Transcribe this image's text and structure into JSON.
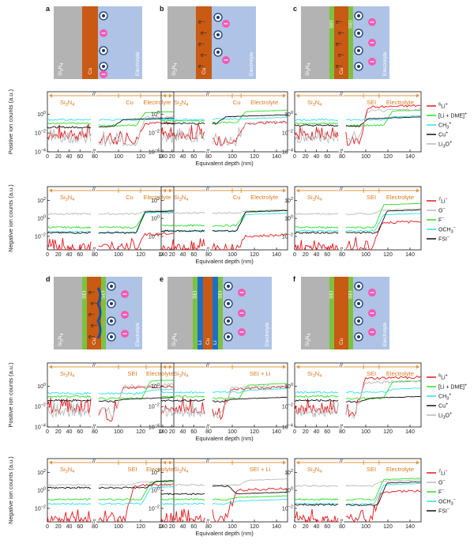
{
  "chart_data": {
    "type": "line",
    "title": "",
    "xlabel": "Equivalent depth (nm)",
    "ylabel_positive": "Positive ion counts (a.u.)",
    "ylabel_negative": "Negative ion counts (a.u.)",
    "xlim": [
      0,
      150
    ],
    "x_break": [
      80,
      80
    ],
    "xticks": [
      "0",
      "20",
      "40",
      "60",
      "80",
      "100",
      "120",
      "140"
    ],
    "pos_yticks": [
      "10^{-4}",
      "10^{-2}",
      "10^{0}"
    ],
    "neg_yticks": [
      "10^{-2}",
      "10^{0}",
      "10^{2}"
    ],
    "region_labels": {
      "a": [
        "Si3N4",
        "Cu",
        "Electrolyte"
      ],
      "b": [
        "Si3N4",
        "Cu",
        "Electrolyte"
      ],
      "c": [
        "Si3N4",
        "SEI",
        "Electrolyte"
      ],
      "d": [
        "Si3N4",
        "SEI",
        "Electrolyte"
      ],
      "e": [
        "Si3N4",
        "SEI + Li"
      ],
      "f": [
        "Si3N4",
        "SEI",
        "Electrolyte"
      ]
    },
    "schematic_labels": {
      "si3n4": "Si3N4",
      "cu": "Cu",
      "electrolyte": "Electrolyte",
      "sei": "SEI",
      "li": "Li",
      "electron": "e−"
    },
    "positive_legend": [
      "6Li+",
      "[Li + DME]+",
      "CH3+",
      "Cu+",
      "Li3O+"
    ],
    "negative_legend": [
      "7Li−",
      "O−",
      "F−",
      "OCH3−",
      "FSI−"
    ],
    "panels": [
      "a",
      "b",
      "c",
      "d",
      "e",
      "f"
    ],
    "series_colors": {
      "pos": [
        "#e8161b",
        "#2ddc2b",
        "#2ee0e8",
        "#111111",
        "#b9b9b9"
      ],
      "neg": [
        "#e8161b",
        "#b9b9b9",
        "#2ddc2b",
        "#2ee0e8",
        "#111111"
      ]
    },
    "series_levels": {
      "a": {
        "pos": [
          [
            -2.3,
            -2.8,
            120,
            -1.0
          ],
          [
            -1.0,
            -1.2,
            120,
            0.15
          ],
          [
            -0.6,
            -0.6,
            120,
            -0.6
          ],
          [
            -1.4,
            -1.3,
            100,
            -0.6
          ],
          [
            -2.6,
            -3.0,
            120,
            -0.4
          ]
        ],
        "neg": [
          [
            -3.3,
            -3.3,
            120,
            -1.8
          ],
          [
            0.5,
            0.5,
            120,
            0.8
          ],
          [
            -1.0,
            -1.0,
            120,
            0.7
          ],
          [
            -1.5,
            -1.6,
            120,
            0.6
          ],
          [
            -1.6,
            -1.6,
            120,
            0.7
          ]
        ]
      },
      "b": {
        "pos": [
          [
            -2.3,
            -2.9,
            108,
            -1.0
          ],
          [
            -0.7,
            -0.9,
            108,
            0.25
          ],
          [
            -0.6,
            -0.5,
            108,
            -0.5
          ],
          [
            -1.0,
            -1.0,
            90,
            -0.3
          ],
          [
            -2.6,
            -3.0,
            108,
            -1.0
          ]
        ],
        "neg": [
          [
            -3.3,
            -3.3,
            108,
            -2.0
          ],
          [
            0.6,
            0.6,
            108,
            0.8
          ],
          [
            -0.8,
            -0.8,
            108,
            0.7
          ],
          [
            -1.4,
            -1.4,
            108,
            0.4
          ],
          [
            -1.4,
            -1.4,
            108,
            0.7
          ]
        ]
      },
      "c": {
        "pos": [
          [
            -2.3,
            -3.0,
            98,
            0.7
          ],
          [
            -1.0,
            -1.2,
            120,
            0.3
          ],
          [
            -0.6,
            -0.6,
            120,
            -0.3
          ],
          [
            -1.2,
            -1.3,
            98,
            -0.5
          ],
          [
            -2.6,
            -2.8,
            98,
            0.3
          ]
        ],
        "neg": [
          [
            -3.3,
            -3.3,
            110,
            -0.5
          ],
          [
            0.5,
            0.5,
            110,
            0.9
          ],
          [
            -1.0,
            -1.0,
            112,
            1.5
          ],
          [
            -1.4,
            -1.4,
            112,
            0.4
          ],
          [
            -1.6,
            -1.6,
            115,
            0.8
          ]
        ]
      },
      "d": {
        "pos": [
          [
            -2.3,
            -3.0,
            100,
            -0.2
          ],
          [
            -1.0,
            -1.2,
            125,
            0.5
          ],
          [
            -0.7,
            -0.7,
            125,
            -0.4
          ],
          [
            -1.4,
            -1.5,
            100,
            -1.3
          ],
          [
            -2.6,
            -2.8,
            100,
            0.0
          ]
        ],
        "neg": [
          [
            -3.3,
            -3.3,
            110,
            0.5
          ],
          [
            0.6,
            0.6,
            115,
            0.9
          ],
          [
            -1.0,
            -1.0,
            125,
            0.9
          ],
          [
            -1.5,
            -1.5,
            125,
            0.3
          ],
          [
            0.3,
            0.3,
            130,
            1.0
          ]
        ]
      },
      "e": {
        "pos": [
          [
            -2.3,
            -3.0,
            95,
            -0.3
          ],
          [
            -1.0,
            -1.2,
            110,
            0.1
          ],
          [
            -0.6,
            -0.6,
            110,
            -0.4
          ],
          [
            -1.4,
            -1.5,
            95,
            -1.3
          ],
          [
            -2.6,
            -2.8,
            95,
            -0.2
          ]
        ],
        "neg": [
          [
            -3.3,
            -3.3,
            100,
            0.0
          ],
          [
            0.6,
            0.6,
            110,
            1.1
          ],
          [
            -1.0,
            -1.0,
            100,
            -0.8
          ],
          [
            -1.5,
            -1.5,
            100,
            -1.2
          ],
          [
            -0.4,
            0.5,
            100,
            -0.4
          ]
        ]
      },
      "f": {
        "pos": [
          [
            -2.3,
            -3.0,
            95,
            0.7
          ],
          [
            -1.0,
            -1.2,
            120,
            0.4
          ],
          [
            -0.6,
            -0.6,
            120,
            -0.3
          ],
          [
            -1.4,
            -1.5,
            100,
            -1.2
          ],
          [
            -2.6,
            -2.8,
            95,
            0.3
          ]
        ],
        "neg": [
          [
            -3.3,
            -3.3,
            110,
            -0.2
          ],
          [
            0.5,
            0.5,
            110,
            1.0
          ],
          [
            -1.0,
            -1.0,
            112,
            1.2
          ],
          [
            -1.5,
            -1.5,
            112,
            0.6
          ],
          [
            -1.6,
            -1.6,
            115,
            0.8
          ]
        ]
      }
    }
  }
}
